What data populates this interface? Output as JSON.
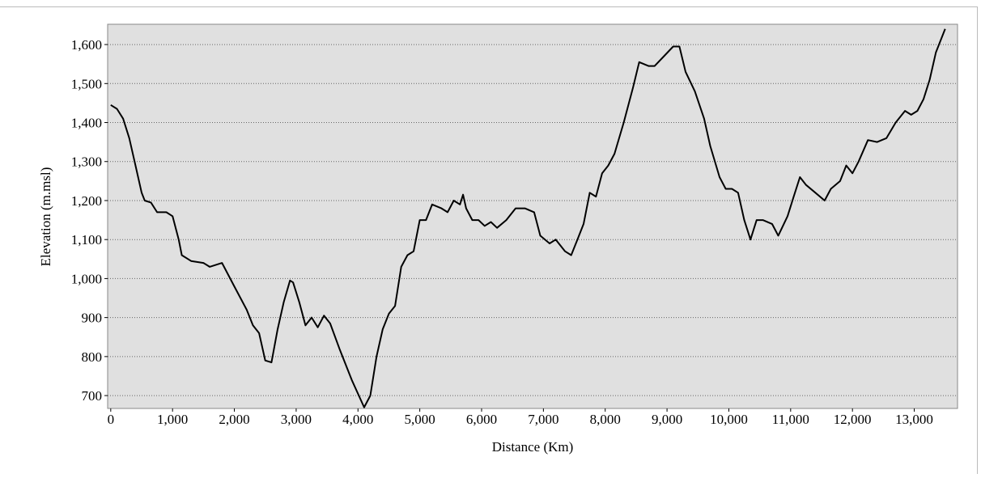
{
  "chart_data": {
    "type": "line",
    "xlabel": "Distance (Km)",
    "ylabel": "Elevation (m.msl)",
    "x": [
      0,
      100,
      200,
      300,
      400,
      500,
      550,
      650,
      750,
      900,
      1000,
      1100,
      1150,
      1300,
      1500,
      1600,
      1800,
      1900,
      2000,
      2200,
      2300,
      2400,
      2500,
      2600,
      2700,
      2800,
      2900,
      2950,
      3050,
      3150,
      3250,
      3350,
      3450,
      3550,
      3700,
      3900,
      4100,
      4200,
      4300,
      4400,
      4500,
      4600,
      4700,
      4800,
      4900,
      5000,
      5100,
      5200,
      5350,
      5450,
      5550,
      5650,
      5700,
      5750,
      5850,
      5950,
      6050,
      6150,
      6250,
      6400,
      6550,
      6700,
      6850,
      6950,
      7100,
      7200,
      7350,
      7450,
      7550,
      7650,
      7750,
      7850,
      7950,
      8050,
      8150,
      8300,
      8450,
      8550,
      8700,
      8800,
      8950,
      9100,
      9200,
      9300,
      9450,
      9600,
      9700,
      9850,
      9950,
      10050,
      10150,
      10250,
      10350,
      10450,
      10550,
      10700,
      10800,
      10950,
      11050,
      11150,
      11250,
      11400,
      11550,
      11650,
      11800,
      11900,
      12000,
      12100,
      12250,
      12400,
      12550,
      12700,
      12850,
      12950,
      13050,
      13150,
      13250,
      13350,
      13500
    ],
    "values": [
      1445,
      1435,
      1410,
      1360,
      1290,
      1220,
      1200,
      1195,
      1170,
      1170,
      1160,
      1100,
      1060,
      1045,
      1040,
      1030,
      1040,
      1010,
      980,
      920,
      880,
      860,
      790,
      785,
      870,
      940,
      995,
      990,
      940,
      880,
      900,
      875,
      905,
      885,
      820,
      740,
      670,
      700,
      800,
      870,
      910,
      930,
      1030,
      1060,
      1070,
      1150,
      1150,
      1190,
      1180,
      1170,
      1200,
      1190,
      1215,
      1180,
      1150,
      1150,
      1135,
      1145,
      1130,
      1150,
      1180,
      1180,
      1170,
      1110,
      1090,
      1100,
      1070,
      1060,
      1100,
      1140,
      1220,
      1210,
      1270,
      1290,
      1320,
      1400,
      1490,
      1555,
      1545,
      1545,
      1570,
      1595,
      1595,
      1530,
      1480,
      1410,
      1340,
      1260,
      1230,
      1230,
      1220,
      1150,
      1100,
      1150,
      1150,
      1140,
      1110,
      1160,
      1210,
      1260,
      1240,
      1220,
      1200,
      1230,
      1250,
      1290,
      1270,
      1300,
      1355,
      1350,
      1360,
      1400,
      1430,
      1420,
      1430,
      1460,
      1510,
      1580,
      1640
    ],
    "color": "#000000",
    "xlim": [
      -50,
      13700
    ],
    "ylim": [
      667,
      1652
    ],
    "xticks": [
      0,
      {
        "value": 1000,
        "label": "1,000"
      },
      {
        "value": 2000,
        "label": "2,000"
      },
      {
        "value": 3000,
        "label": "3,000"
      },
      {
        "value": 4000,
        "label": "4,000"
      },
      {
        "value": 5000,
        "label": "5,000"
      },
      {
        "value": 6000,
        "label": "6,000"
      },
      {
        "value": 7000,
        "label": "7,000"
      },
      {
        "value": 8000,
        "label": "8,000"
      },
      {
        "value": 9000,
        "label": "9,000"
      },
      {
        "value": 10000,
        "label": "10,000"
      },
      {
        "value": 11000,
        "label": "11,000"
      },
      {
        "value": 12000,
        "label": "12,000"
      },
      {
        "value": 13000,
        "label": "13,000"
      }
    ],
    "yticks": [
      700,
      800,
      900,
      {
        "value": 1000,
        "label": "1,000"
      },
      {
        "value": 1100,
        "label": "1,100"
      },
      {
        "value": 1200,
        "label": "1,200"
      },
      {
        "value": 1300,
        "label": "1,300"
      },
      {
        "value": 1400,
        "label": "1,400"
      },
      {
        "value": 1500,
        "label": "1,500"
      },
      {
        "value": 1600,
        "label": "1,600"
      }
    ],
    "grid": true
  }
}
